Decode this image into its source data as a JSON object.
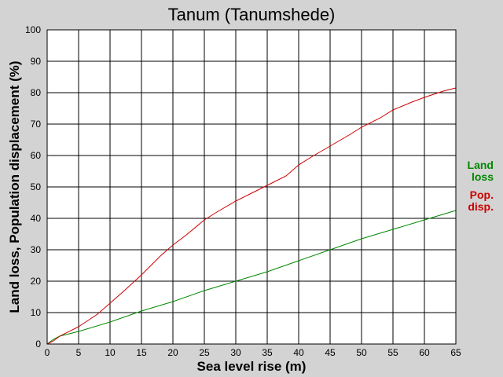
{
  "chart_data": {
    "type": "line",
    "title": "Tanum (Tanumshede)",
    "xlabel": "Sea level rise (m)",
    "ylabel": "Land loss, Population displacement (%)",
    "xlim": [
      0,
      65
    ],
    "ylim": [
      0,
      100
    ],
    "xticks": [
      0,
      5,
      10,
      15,
      20,
      25,
      30,
      35,
      40,
      45,
      50,
      55,
      60,
      65
    ],
    "yticks": [
      0,
      10,
      20,
      30,
      40,
      50,
      60,
      70,
      80,
      90,
      100
    ],
    "grid": true,
    "legend_position": "right",
    "series": [
      {
        "name": "Land loss",
        "legend_lines": [
          "Land",
          "loss"
        ],
        "color": "#008800",
        "points": [
          [
            0,
            0
          ],
          [
            1,
            1.5
          ],
          [
            2,
            2.5
          ],
          [
            5,
            4
          ],
          [
            10,
            7
          ],
          [
            15,
            10.5
          ],
          [
            20,
            13.5
          ],
          [
            25,
            17
          ],
          [
            30,
            20
          ],
          [
            35,
            23
          ],
          [
            40,
            26.5
          ],
          [
            45,
            30
          ],
          [
            50,
            33.5
          ],
          [
            55,
            36.5
          ],
          [
            60,
            39.5
          ],
          [
            65,
            42.5
          ]
        ]
      },
      {
        "name": "Pop. disp.",
        "legend_lines": [
          "Pop.",
          "disp."
        ],
        "color": "#cc0000",
        "points": [
          [
            0,
            0
          ],
          [
            1,
            1
          ],
          [
            2,
            2.5
          ],
          [
            5,
            5.5
          ],
          [
            8,
            9.5
          ],
          [
            10,
            13
          ],
          [
            12,
            16.5
          ],
          [
            15,
            22
          ],
          [
            18,
            28
          ],
          [
            20,
            31.5
          ],
          [
            22,
            34.5
          ],
          [
            25,
            39.5
          ],
          [
            27,
            42
          ],
          [
            30,
            45.5
          ],
          [
            33,
            48.5
          ],
          [
            35,
            50.5
          ],
          [
            38,
            53.5
          ],
          [
            40,
            57
          ],
          [
            42,
            59.5
          ],
          [
            45,
            63
          ],
          [
            48,
            66.5
          ],
          [
            50,
            69
          ],
          [
            53,
            72
          ],
          [
            55,
            74.5
          ],
          [
            58,
            77
          ],
          [
            60,
            78.5
          ],
          [
            63,
            80.5
          ],
          [
            65,
            81.5
          ]
        ]
      }
    ]
  }
}
